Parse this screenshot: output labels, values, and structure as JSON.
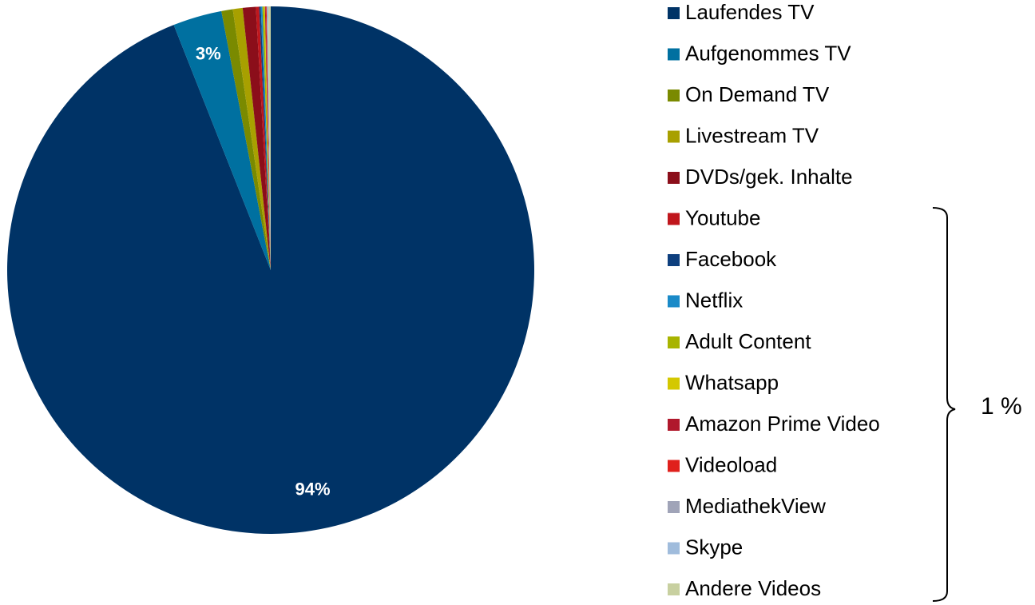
{
  "chart_data": {
    "type": "pie",
    "categories": [
      "Laufendes TV",
      "Aufgenommes TV",
      "On Demand TV",
      "Livestream TV",
      "DVDs/gek. Inhalte",
      "Youtube",
      "Facebook",
      "Netflix",
      "Adult Content",
      "Whatsapp",
      "Amazon Prime Video",
      "Videoload",
      "MediathekView",
      "Skype",
      "Andere Videos"
    ],
    "values": [
      94,
      3,
      0.7,
      0.6,
      0.8,
      0.2,
      0.1,
      0.1,
      0.1,
      0.05,
      0.05,
      0.05,
      0.05,
      0.05,
      0.15
    ],
    "value_labels": [
      "94%",
      "3%",
      null,
      null,
      null,
      null,
      null,
      null,
      null,
      null,
      null,
      null,
      null,
      null,
      null
    ],
    "colors": [
      "#003366",
      "#0070a0",
      "#7a8a00",
      "#a8a000",
      "#8b0e1a",
      "#c0161c",
      "#0e3f7e",
      "#1a8ac8",
      "#a8b400",
      "#d4c800",
      "#b0182c",
      "#e0201c",
      "#a0a4b8",
      "#a0bcdc",
      "#c8d0a0"
    ],
    "annotation": "1 %"
  }
}
